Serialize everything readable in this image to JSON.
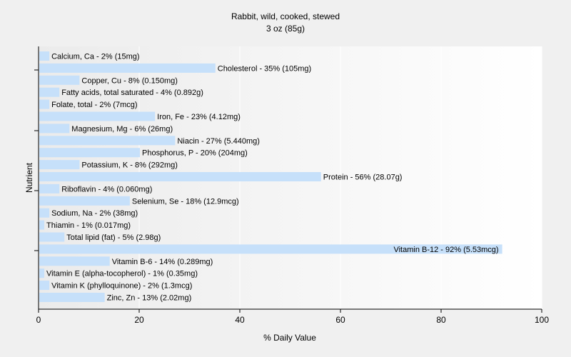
{
  "chart_data": {
    "type": "bar",
    "orientation": "horizontal",
    "title": "Rabbit, wild, cooked, stewed",
    "subtitle": "3 oz (85g)",
    "xlabel": "% Daily Value",
    "ylabel": "Nutrient",
    "xlim": [
      0,
      100
    ],
    "xticks": [
      "0",
      "20",
      "40",
      "60",
      "80",
      "100"
    ],
    "grid": true,
    "legend": "none",
    "bar_color": "#c6e0fa",
    "categories": [
      "Calcium, Ca",
      "Cholesterol",
      "Copper, Cu",
      "Fatty acids, total saturated",
      "Folate, total",
      "Iron, Fe",
      "Magnesium, Mg",
      "Niacin",
      "Phosphorus, P",
      "Potassium, K",
      "Protein",
      "Riboflavin",
      "Selenium, Se",
      "Sodium, Na",
      "Thiamin",
      "Total lipid (fat)",
      "Vitamin B-12",
      "Vitamin B-6",
      "Vitamin E (alpha-tocopherol)",
      "Vitamin K (phylloquinone)",
      "Zinc, Zn"
    ],
    "values": [
      2,
      35,
      8,
      4,
      2,
      23,
      6,
      27,
      20,
      8,
      56,
      4,
      18,
      2,
      1,
      5,
      92,
      14,
      1,
      2,
      13
    ],
    "labels": [
      "Calcium, Ca - 2% (15mg)",
      "Cholesterol - 35% (105mg)",
      "Copper, Cu - 8% (0.150mg)",
      "Fatty acids, total saturated - 4% (0.892g)",
      "Folate, total - 2% (7mcg)",
      "Iron, Fe - 23% (4.12mg)",
      "Magnesium, Mg - 6% (26mg)",
      "Niacin - 27% (5.440mg)",
      "Phosphorus, P - 20% (204mg)",
      "Potassium, K - 8% (292mg)",
      "Protein - 56% (28.07g)",
      "Riboflavin - 4% (0.060mg)",
      "Selenium, Se - 18% (12.9mcg)",
      "Sodium, Na - 2% (38mg)",
      "Thiamin - 1% (0.017mg)",
      "Total lipid (fat) - 5% (2.98g)",
      "Vitamin B-12 - 92% (5.53mcg)",
      "Vitamin B-6 - 14% (0.289mg)",
      "Vitamin E (alpha-tocopherol) - 1% (0.35mg)",
      "Vitamin K (phylloquinone) - 2% (1.3mcg)",
      "Zinc, Zn - 13% (2.02mg)"
    ]
  }
}
